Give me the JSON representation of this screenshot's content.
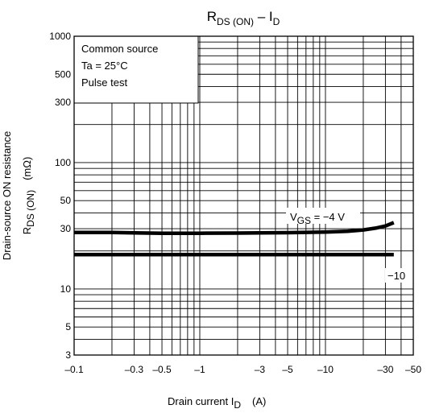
{
  "chart_data": {
    "type": "line",
    "title": {
      "main": "R",
      "main_sub": "DS (ON)",
      "dash": " – I",
      "dash_sub": "D"
    },
    "x_axis": {
      "scale": "log",
      "range": [
        -0.1,
        -50
      ],
      "ticks": [
        {
          "value": 0.1,
          "label": "–0.1"
        },
        {
          "value": 0.3,
          "label": "–0.3"
        },
        {
          "value": 0.5,
          "label": "–0.5"
        },
        {
          "value": 1,
          "label": "–1"
        },
        {
          "value": 3,
          "label": "–3"
        },
        {
          "value": 5,
          "label": "–5"
        },
        {
          "value": 10,
          "label": "–10"
        },
        {
          "value": 30,
          "label": "–30"
        },
        {
          "value": 50,
          "label": "–50"
        }
      ],
      "label": {
        "text": "Drain current   I",
        "sub": "D",
        "unit": "(A)"
      }
    },
    "y_axis": {
      "scale": "log",
      "range": [
        3,
        1000
      ],
      "ticks": [
        {
          "value": 3,
          "label": "3"
        },
        {
          "value": 5,
          "label": "5"
        },
        {
          "value": 10,
          "label": "10"
        },
        {
          "value": 30,
          "label": "30"
        },
        {
          "value": 50,
          "label": "50"
        },
        {
          "value": 100,
          "label": "100"
        },
        {
          "value": 300,
          "label": "300"
        },
        {
          "value": 500,
          "label": "500"
        },
        {
          "value": 1000,
          "label": "1000"
        }
      ],
      "label_line1": "Drain-source ON resistance",
      "label_line2": {
        "text": "R",
        "sub": "DS (ON)",
        "unit": "(mΩ)"
      }
    },
    "conditions": [
      "Common source",
      "Ta = 25°C",
      "Pulse test"
    ],
    "grid": true,
    "series": [
      {
        "name": "V_GS = −4 V",
        "label": {
          "text": "V",
          "sub": "GS",
          "rest": " = −4 V"
        },
        "points": [
          [
            0.1,
            28
          ],
          [
            0.2,
            28
          ],
          [
            0.3,
            27.8
          ],
          [
            0.5,
            27.6
          ],
          [
            1,
            27.6
          ],
          [
            2,
            27.7
          ],
          [
            3,
            27.8
          ],
          [
            5,
            27.9
          ],
          [
            10,
            28.2
          ],
          [
            15,
            28.6
          ],
          [
            20,
            29.3
          ],
          [
            25,
            30.3
          ],
          [
            30,
            31.5
          ],
          [
            35,
            33.5
          ]
        ]
      },
      {
        "name": "−10",
        "label": {
          "text": "−10"
        },
        "points": [
          [
            0.1,
            18.7
          ],
          [
            0.3,
            18.7
          ],
          [
            1,
            18.7
          ],
          [
            3,
            18.7
          ],
          [
            10,
            18.7
          ],
          [
            35,
            18.7
          ]
        ]
      }
    ]
  }
}
